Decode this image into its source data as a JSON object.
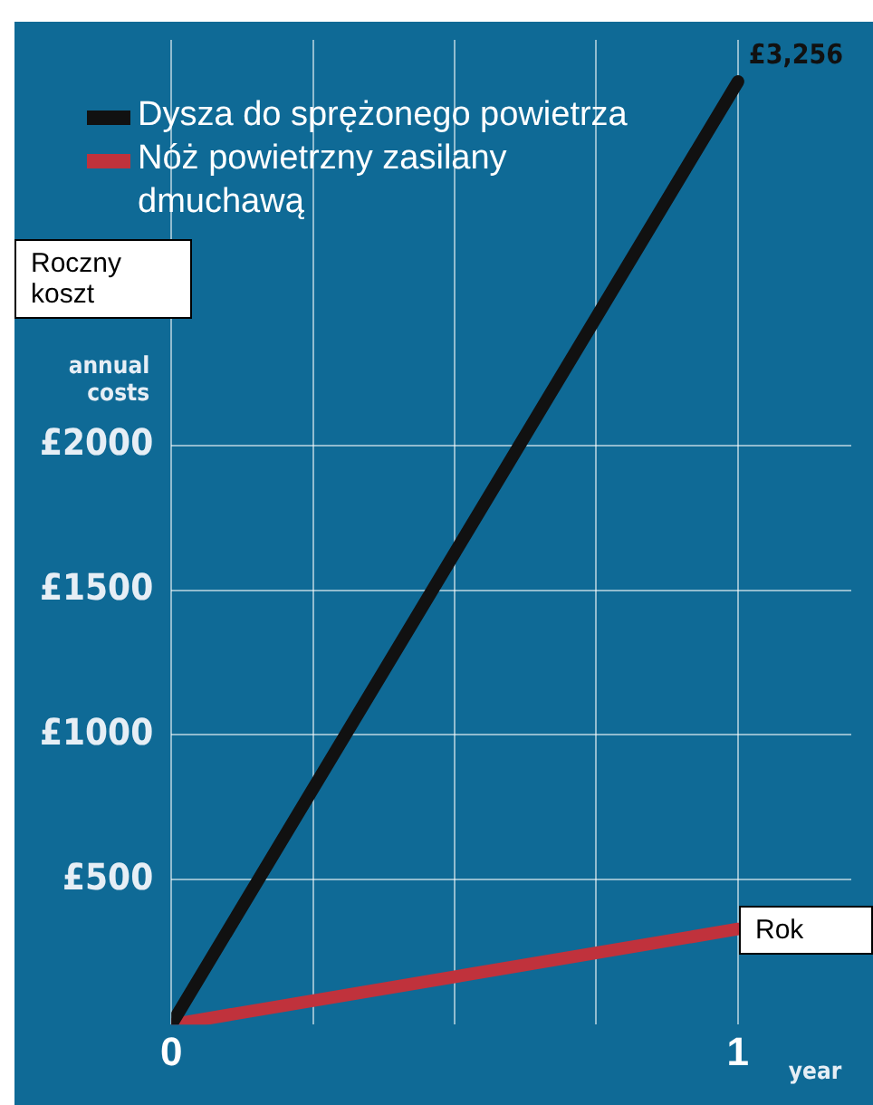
{
  "chart_data": {
    "type": "line",
    "xlabel": "year",
    "ylabel": "annual costs",
    "x": [
      0,
      1
    ],
    "series": [
      {
        "name": "Dysza do sprężonego powietrza",
        "color": "#111111",
        "values": [
          0,
          3256
        ]
      },
      {
        "name": "Nóż powietrzny zasilany dmuchawą",
        "color": "#c0323c",
        "values": [
          0,
          330
        ]
      }
    ],
    "xlim": [
      0,
      1.2
    ],
    "xticks": [
      0,
      {
        "value": 0.25,
        "label": null
      },
      {
        "value": 0.5,
        "label": null
      },
      {
        "value": 0.75,
        "label": null
      },
      1
    ],
    "ylim": [
      0,
      3400
    ],
    "yticks": [
      {
        "value": 500,
        "label": "£500"
      },
      {
        "value": 1000,
        "label": "£1000"
      },
      {
        "value": 1500,
        "label": "£1500"
      },
      {
        "value": 2000,
        "label": "£2000"
      }
    ],
    "annotations": [
      {
        "text": "£3,256",
        "x": 1,
        "y": 3256
      },
      "Roczny koszt",
      "Rok"
    ],
    "grid": true,
    "legend": "top left",
    "marker": "none",
    "line_style": "solid"
  }
}
